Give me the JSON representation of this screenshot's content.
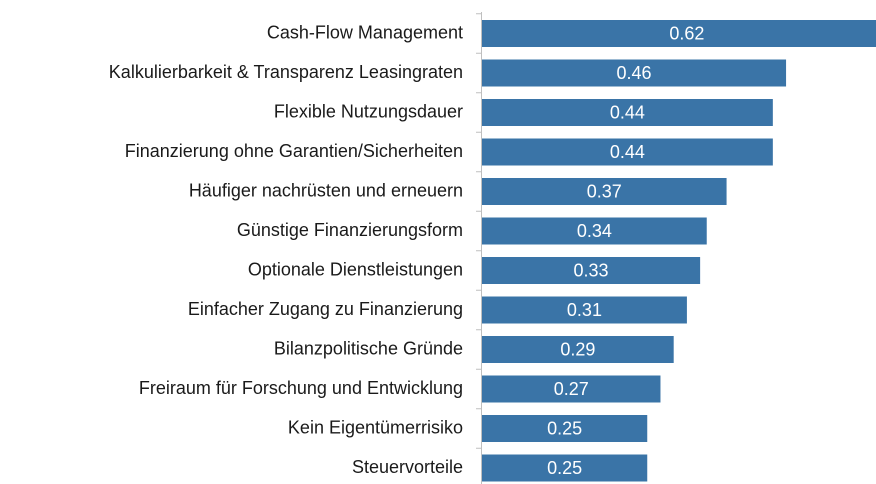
{
  "chart_data": {
    "type": "bar",
    "orientation": "horizontal",
    "categories": [
      "Cash-Flow Management",
      "Kalkulierbarkeit & Transparenz Leasingraten",
      "Flexible Nutzungsdauer",
      "Finanzierung ohne Garantien/Sicherheiten",
      "Häufiger nachrüsten und erneuern",
      "Günstige Finanzierungsform",
      "Optionale Dienstleistungen",
      "Einfacher Zugang zu Finanzierung",
      "Bilanzpolitische Gründe",
      "Freiraum für Forschung und Entwicklung",
      "Kein Eigentümerrisiko",
      "Steuervorteile"
    ],
    "values": [
      0.62,
      0.46,
      0.44,
      0.44,
      0.37,
      0.34,
      0.33,
      0.31,
      0.29,
      0.27,
      0.25,
      0.25
    ],
    "color": "#3a74a7"
  }
}
